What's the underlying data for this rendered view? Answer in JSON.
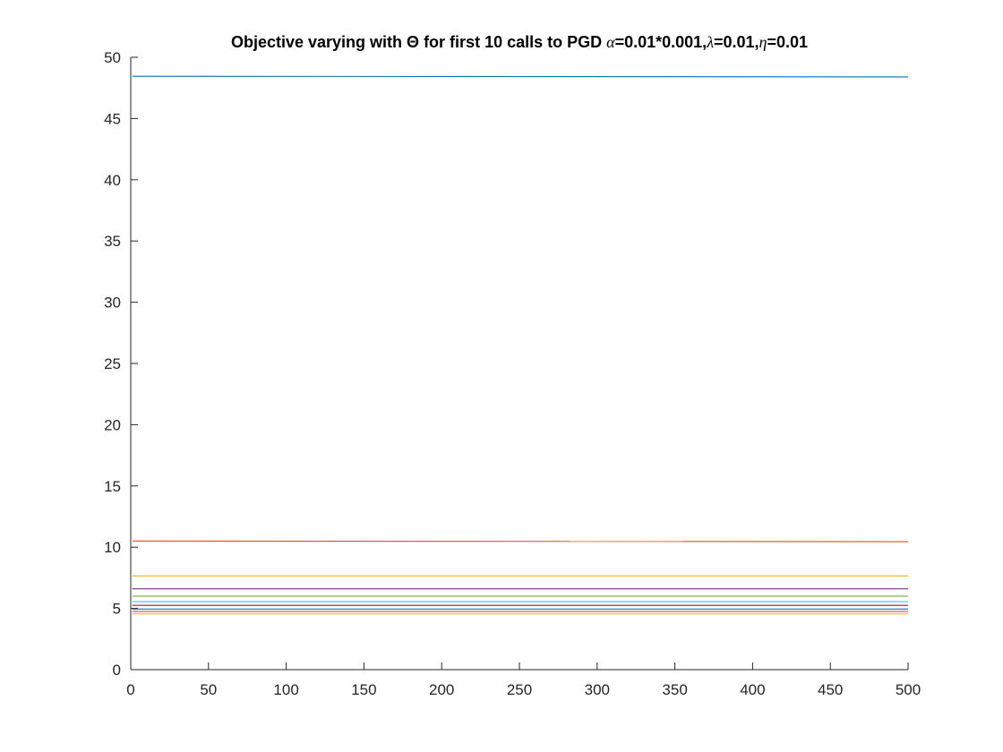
{
  "chart_data": {
    "type": "line",
    "title": {
      "parts": [
        {
          "text": "Objective varying with ",
          "greek": false
        },
        {
          "text": "Θ",
          "greek": false
        },
        {
          "text": " for first 10 calls to PGD ",
          "greek": false
        },
        {
          "text": "α",
          "greek": true
        },
        {
          "text": "=0.01*0.001,",
          "greek": false
        },
        {
          "text": "λ",
          "greek": true
        },
        {
          "text": "=0.01,",
          "greek": false
        },
        {
          "text": "η",
          "greek": true
        },
        {
          "text": "=0.01",
          "greek": false
        }
      ]
    },
    "xlabel": "",
    "ylabel": "",
    "xlim": [
      0,
      500
    ],
    "ylim": [
      0,
      50
    ],
    "xticks": [
      "0",
      "50",
      "100",
      "150",
      "200",
      "250",
      "300",
      "350",
      "400",
      "450",
      "500"
    ],
    "yticks": [
      "0",
      "5",
      "10",
      "15",
      "20",
      "25",
      "30",
      "35",
      "40",
      "45",
      "50"
    ],
    "grid": false,
    "legend": "none",
    "x": [
      1,
      500
    ],
    "series": [
      {
        "values": [
          48.45,
          48.4
        ],
        "color": "#0072BD"
      },
      {
        "values": [
          10.5,
          10.45
        ],
        "color": "#D95319"
      },
      {
        "values": [
          7.65,
          7.65
        ],
        "color": "#EDB120"
      },
      {
        "values": [
          6.6,
          6.6
        ],
        "color": "#7E2F8E"
      },
      {
        "values": [
          6.0,
          6.0
        ],
        "color": "#77AC30"
      },
      {
        "values": [
          5.55,
          5.55
        ],
        "color": "#4DBEEE"
      },
      {
        "values": [
          5.25,
          5.25
        ],
        "color": "#A2142F"
      },
      {
        "values": [
          4.95,
          4.95
        ],
        "color": "#0072BD"
      },
      {
        "values": [
          4.75,
          4.75
        ],
        "color": "#D95319"
      },
      {
        "values": [
          4.55,
          4.55
        ],
        "color": "#EDB120"
      }
    ]
  }
}
